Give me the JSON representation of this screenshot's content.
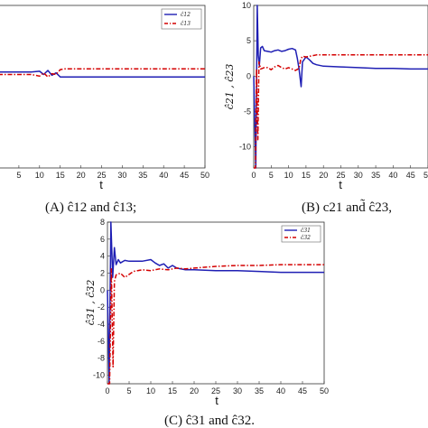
{
  "chart_data": [
    {
      "id": "A",
      "type": "line",
      "caption": "(A) ĉ12  and  ĉ13;",
      "xlabel": "t",
      "ylabel": "",
      "xlim": [
        0,
        50
      ],
      "ylim": [
        -10,
        10
      ],
      "xticks": [
        5,
        10,
        15,
        20,
        25,
        30,
        35,
        40,
        45,
        50
      ],
      "yticks": [],
      "grid": false,
      "legend_position": "top-right",
      "series": [
        {
          "name": "ĉ12",
          "color": "#1f1fb4",
          "dash": "solid",
          "x": [
            0,
            8,
            10,
            11,
            12,
            13,
            14,
            15,
            50
          ],
          "y": [
            1.8,
            1.8,
            1.9,
            1.5,
            2.0,
            1.4,
            1.7,
            1.2,
            1.2
          ]
        },
        {
          "name": "ĉ13",
          "color": "#d40000",
          "dash": "dashdot",
          "x": [
            0,
            8,
            10,
            11,
            12,
            13,
            14,
            15,
            16,
            50
          ],
          "y": [
            1.5,
            1.5,
            1.3,
            1.7,
            1.2,
            1.6,
            1.5,
            2.1,
            2.2,
            2.2
          ]
        }
      ]
    },
    {
      "id": "B",
      "type": "line",
      "caption": "(B)  c21  and̃  ĉ23,",
      "xlabel": "t",
      "ylabel": "ĉ21 , ĉ23",
      "xlim": [
        0,
        50
      ],
      "ylim": [
        -13,
        10
      ],
      "xticks": [
        0,
        5,
        10,
        15,
        20,
        25,
        30,
        35,
        40,
        45,
        50
      ],
      "yticks": [
        10,
        5,
        0,
        -5,
        -10
      ],
      "grid": false,
      "legend_position": "top-right",
      "series": [
        {
          "name": "",
          "color": "#1f1fb4",
          "dash": "solid",
          "x": [
            0,
            0.6,
            1.0,
            1.3,
            1.6,
            2.0,
            2.5,
            3,
            4,
            5,
            6,
            7,
            8,
            9,
            10,
            11,
            12,
            12.5,
            13,
            13.6,
            14,
            15,
            16,
            17,
            18,
            20,
            25,
            30,
            35,
            40,
            45,
            50
          ],
          "y": [
            0,
            -13,
            10,
            3,
            1.5,
            4.0,
            4.2,
            3.6,
            3.5,
            3.4,
            3.6,
            3.7,
            3.5,
            3.6,
            3.8,
            3.9,
            3.7,
            2.5,
            1.0,
            -1.5,
            2.0,
            2.7,
            2.3,
            1.8,
            1.6,
            1.4,
            1.3,
            1.2,
            1.1,
            1.1,
            1.0,
            1.0
          ]
        },
        {
          "name": "",
          "color": "#d40000",
          "dash": "dashdot",
          "x": [
            0,
            0.5,
            0.8,
            1.2,
            1.5,
            2.0,
            3,
            4,
            5,
            6,
            7,
            8,
            9,
            10,
            11,
            12,
            13,
            13.5,
            14,
            15,
            16,
            18,
            20,
            25,
            30,
            35,
            40,
            45,
            50
          ],
          "y": [
            -13,
            -13,
            1.0,
            -9,
            2.0,
            1.0,
            1.2,
            1.2,
            0.9,
            1.3,
            1.5,
            1.2,
            1.0,
            1.2,
            1.0,
            0.8,
            1.1,
            2.4,
            2.8,
            2.7,
            2.8,
            3.0,
            3.0,
            3.0,
            3.0,
            3.0,
            3.0,
            3.0,
            3.0
          ]
        }
      ]
    },
    {
      "id": "C",
      "type": "line",
      "caption": "(C)  ĉ31  and  ĉ32.",
      "xlabel": "t",
      "ylabel": "ĉ31 , ĉ32",
      "xlim": [
        0,
        50
      ],
      "ylim": [
        -11,
        8
      ],
      "xticks": [
        0,
        5,
        10,
        15,
        20,
        25,
        30,
        35,
        40,
        45,
        50
      ],
      "yticks": [
        8,
        6,
        4,
        2,
        0,
        -2,
        -4,
        -6,
        -8,
        -10
      ],
      "grid": false,
      "legend_position": "top-right",
      "series": [
        {
          "name": "ĉ31",
          "color": "#1f1fb4",
          "dash": "solid",
          "x": [
            0,
            0.4,
            0.8,
            1.2,
            1.6,
            2.0,
            2.5,
            3,
            4,
            5,
            8,
            10,
            11,
            12,
            13,
            14,
            15,
            16,
            18,
            20,
            25,
            30,
            35,
            40,
            45,
            50
          ],
          "y": [
            0,
            -11,
            8,
            1.5,
            5.0,
            3.0,
            3.6,
            3.2,
            3.5,
            3.4,
            3.4,
            3.6,
            3.2,
            2.9,
            3.1,
            2.6,
            2.9,
            2.6,
            2.4,
            2.4,
            2.3,
            2.3,
            2.2,
            2.1,
            2.1,
            2.1
          ]
        },
        {
          "name": "ĉ32",
          "color": "#d40000",
          "dash": "dashdot",
          "x": [
            0,
            0.5,
            0.9,
            1.3,
            1.6,
            2.0,
            3,
            4,
            6,
            8,
            10,
            12,
            14,
            16,
            18,
            20,
            25,
            30,
            35,
            40,
            45,
            50
          ],
          "y": [
            -11,
            -11,
            2.5,
            -9,
            1.0,
            1.8,
            2.0,
            1.5,
            2.2,
            2.4,
            2.3,
            2.5,
            2.4,
            2.6,
            2.5,
            2.6,
            2.8,
            2.9,
            2.9,
            3.0,
            3.0,
            3.0
          ]
        }
      ]
    }
  ]
}
